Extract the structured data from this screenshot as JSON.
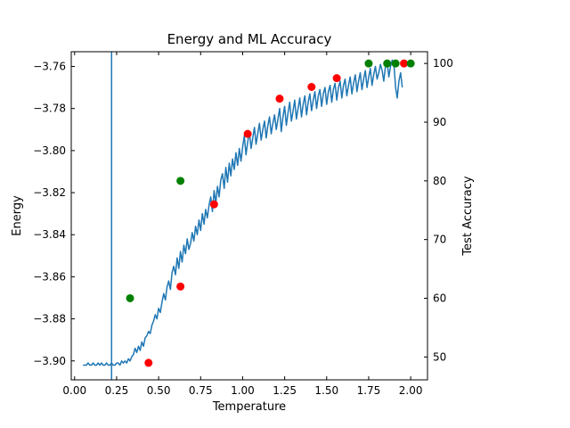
{
  "chart_data": {
    "type": "line",
    "title": "Energy and ML Accuracy",
    "xlabel": "Temperature",
    "ylabel": "Energy",
    "y2label": "Test Accuracy",
    "xlim": [
      -0.02,
      2.1
    ],
    "ylim": [
      -3.909,
      -3.753
    ],
    "y2lim": [
      46.1,
      102.0
    ],
    "xticks": [
      "0.00",
      "0.25",
      "0.50",
      "0.75",
      "1.00",
      "1.25",
      "1.50",
      "1.75",
      "2.00"
    ],
    "xtick_values": [
      0.0,
      0.25,
      0.5,
      0.75,
      1.0,
      1.25,
      1.5,
      1.75,
      2.0
    ],
    "yticks": [
      "−3.76",
      "−3.78",
      "−3.80",
      "−3.82",
      "−3.84",
      "−3.86",
      "−3.88",
      "−3.90"
    ],
    "ytick_values": [
      -3.76,
      -3.78,
      -3.8,
      -3.82,
      -3.84,
      -3.86,
      -3.88,
      -3.9
    ],
    "y2ticks": [
      "100",
      "90",
      "80",
      "70",
      "60",
      "50"
    ],
    "y2tick_values": [
      100,
      90,
      80,
      70,
      60,
      50
    ],
    "vline_x": 0.22,
    "energy_x": [
      0.05,
      0.06,
      0.07,
      0.08,
      0.09,
      0.1,
      0.11,
      0.12,
      0.13,
      0.14,
      0.15,
      0.16,
      0.17,
      0.18,
      0.19,
      0.2,
      0.21,
      0.22,
      0.23,
      0.24,
      0.25,
      0.26,
      0.27,
      0.28,
      0.29,
      0.3,
      0.31,
      0.32,
      0.33,
      0.34,
      0.35,
      0.36,
      0.37,
      0.38,
      0.39,
      0.4,
      0.41,
      0.42,
      0.43,
      0.44,
      0.45,
      0.46,
      0.47,
      0.48,
      0.49,
      0.5,
      0.51,
      0.52,
      0.53,
      0.54,
      0.55,
      0.56,
      0.57,
      0.58,
      0.59,
      0.6,
      0.61,
      0.62,
      0.63,
      0.64,
      0.65,
      0.66,
      0.67,
      0.68,
      0.69,
      0.7,
      0.71,
      0.72,
      0.73,
      0.74,
      0.75,
      0.76,
      0.77,
      0.78,
      0.79,
      0.8,
      0.81,
      0.82,
      0.83,
      0.84,
      0.85,
      0.86,
      0.87,
      0.88,
      0.89,
      0.9,
      0.91,
      0.92,
      0.93,
      0.94,
      0.95,
      0.96,
      0.97,
      0.98,
      0.99,
      1.0,
      1.01,
      1.02,
      1.03,
      1.04,
      1.05,
      1.06,
      1.07,
      1.08,
      1.09,
      1.1,
      1.11,
      1.12,
      1.13,
      1.14,
      1.15,
      1.16,
      1.17,
      1.18,
      1.19,
      1.2,
      1.21,
      1.22,
      1.23,
      1.24,
      1.25,
      1.26,
      1.27,
      1.28,
      1.29,
      1.3,
      1.31,
      1.32,
      1.33,
      1.34,
      1.35,
      1.36,
      1.37,
      1.38,
      1.39,
      1.4,
      1.41,
      1.42,
      1.43,
      1.44,
      1.45,
      1.46,
      1.47,
      1.48,
      1.49,
      1.5,
      1.51,
      1.52,
      1.53,
      1.54,
      1.55,
      1.56,
      1.57,
      1.58,
      1.59,
      1.6,
      1.61,
      1.62,
      1.63,
      1.64,
      1.65,
      1.66,
      1.67,
      1.68,
      1.69,
      1.7,
      1.71,
      1.72,
      1.73,
      1.74,
      1.75,
      1.76,
      1.77,
      1.78,
      1.79,
      1.8,
      1.81,
      1.82,
      1.83,
      1.84,
      1.85,
      1.86,
      1.87,
      1.88,
      1.89,
      1.9,
      1.91,
      1.92,
      1.93,
      1.94,
      1.95,
      1.96,
      1.97,
      1.98,
      1.99,
      2.0
    ],
    "energy_y": [
      -3.902,
      -3.902,
      -3.902,
      -3.901,
      -3.902,
      -3.902,
      -3.901,
      -3.902,
      -3.902,
      -3.901,
      -3.902,
      -3.901,
      -3.902,
      -3.902,
      -3.901,
      -3.902,
      -3.902,
      -3.901,
      -3.902,
      -3.902,
      -3.901,
      -3.901,
      -3.902,
      -3.9,
      -3.901,
      -3.9,
      -3.901,
      -3.899,
      -3.9,
      -3.898,
      -3.897,
      -3.894,
      -3.896,
      -3.893,
      -3.895,
      -3.891,
      -3.893,
      -3.889,
      -3.888,
      -3.886,
      -3.887,
      -3.883,
      -3.881,
      -3.878,
      -3.88,
      -3.875,
      -3.877,
      -3.872,
      -3.868,
      -3.871,
      -3.865,
      -3.862,
      -3.866,
      -3.858,
      -3.855,
      -3.859,
      -3.851,
      -3.856,
      -3.848,
      -3.853,
      -3.845,
      -3.849,
      -3.842,
      -3.847,
      -3.844,
      -3.839,
      -3.843,
      -3.836,
      -3.84,
      -3.833,
      -3.838,
      -3.83,
      -3.835,
      -3.828,
      -3.832,
      -3.826,
      -3.822,
      -3.829,
      -3.819,
      -3.825,
      -3.817,
      -3.822,
      -3.814,
      -3.811,
      -3.818,
      -3.808,
      -3.815,
      -3.806,
      -3.812,
      -3.804,
      -3.809,
      -3.801,
      -3.807,
      -3.799,
      -3.805,
      -3.798,
      -3.793,
      -3.802,
      -3.796,
      -3.791,
      -3.799,
      -3.794,
      -3.789,
      -3.797,
      -3.792,
      -3.787,
      -3.795,
      -3.79,
      -3.786,
      -3.794,
      -3.788,
      -3.784,
      -3.792,
      -3.787,
      -3.783,
      -3.79,
      -3.785,
      -3.78,
      -3.791,
      -3.784,
      -3.779,
      -3.788,
      -3.782,
      -3.777,
      -3.786,
      -3.781,
      -3.776,
      -3.785,
      -3.78,
      -3.775,
      -3.784,
      -3.778,
      -3.774,
      -3.783,
      -3.777,
      -3.773,
      -3.781,
      -3.776,
      -3.772,
      -3.78,
      -3.774,
      -3.771,
      -3.779,
      -3.773,
      -3.77,
      -3.778,
      -3.772,
      -3.769,
      -3.777,
      -3.771,
      -3.768,
      -3.776,
      -3.77,
      -3.767,
      -3.775,
      -3.769,
      -3.766,
      -3.774,
      -3.769,
      -3.765,
      -3.773,
      -3.768,
      -3.764,
      -3.772,
      -3.767,
      -3.763,
      -3.771,
      -3.766,
      -3.762,
      -3.77,
      -3.765,
      -3.761,
      -3.769,
      -3.764,
      -3.76,
      -3.766,
      -3.763,
      -3.759,
      -3.762,
      -3.767,
      -3.76,
      -3.758,
      -3.765,
      -3.76,
      -3.757,
      -3.759,
      -3.77,
      -3.775,
      -3.767,
      -3.763,
      -3.77
    ],
    "green_points": [
      {
        "x": 0.33,
        "y": 60
      },
      {
        "x": 0.63,
        "y": 80
      },
      {
        "x": 1.75,
        "y": 100
      },
      {
        "x": 1.86,
        "y": 100
      },
      {
        "x": 1.91,
        "y": 100
      },
      {
        "x": 2.0,
        "y": 100
      }
    ],
    "red_points": [
      {
        "x": 0.44,
        "y": 49
      },
      {
        "x": 0.63,
        "y": 62
      },
      {
        "x": 0.83,
        "y": 76
      },
      {
        "x": 1.03,
        "y": 88
      },
      {
        "x": 1.22,
        "y": 94
      },
      {
        "x": 1.41,
        "y": 96
      },
      {
        "x": 1.56,
        "y": 97.5
      },
      {
        "x": 1.96,
        "y": 100
      }
    ],
    "colors": {
      "energy_line": "#1f77b4",
      "vline": "#1f77b4",
      "green_points": "#008000",
      "red_points": "#ff0000",
      "axes": "#000000"
    }
  }
}
